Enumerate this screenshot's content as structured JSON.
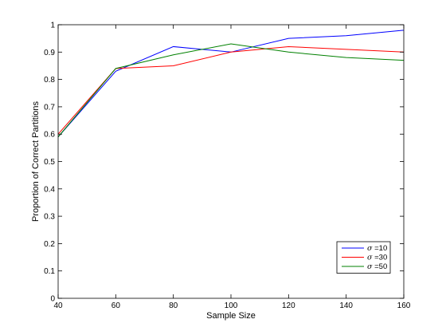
{
  "chart_data": {
    "type": "line",
    "title": "",
    "xlabel": "Sample Size",
    "ylabel": "Proportion of Correct Partitions",
    "xlim": [
      40,
      160
    ],
    "ylim": [
      0,
      1
    ],
    "xticks": [
      40,
      60,
      80,
      100,
      120,
      140,
      160
    ],
    "xtick_labels": [
      "40",
      "60",
      "80",
      "100",
      "120",
      "140",
      "160"
    ],
    "yticks": [
      0,
      0.1,
      0.2,
      0.3,
      0.4,
      0.5,
      0.6,
      0.7,
      0.8,
      0.9,
      1
    ],
    "ytick_labels": [
      "0",
      "0.1",
      "0.2",
      "0.3",
      "0.4",
      "0.5",
      "0.6",
      "0.7",
      "0.8",
      "0.9",
      "1"
    ],
    "grid": false,
    "legend_position": "bottom-right",
    "x": [
      40,
      60,
      80,
      100,
      120,
      140,
      160
    ],
    "series": [
      {
        "name": "σ =10",
        "symbol": "σ",
        "label_rest": " =10",
        "color": "#0000ff",
        "values": [
          0.59,
          0.83,
          0.92,
          0.9,
          0.95,
          0.96,
          0.98
        ]
      },
      {
        "name": "σ =30",
        "symbol": "σ",
        "label_rest": " =30",
        "color": "#ff0000",
        "values": [
          0.6,
          0.84,
          0.85,
          0.9,
          0.92,
          0.91,
          0.9
        ]
      },
      {
        "name": "σ =50",
        "symbol": "σ",
        "label_rest": " =50",
        "color": "#008000",
        "values": [
          0.59,
          0.84,
          0.89,
          0.93,
          0.9,
          0.88,
          0.87
        ]
      }
    ]
  }
}
